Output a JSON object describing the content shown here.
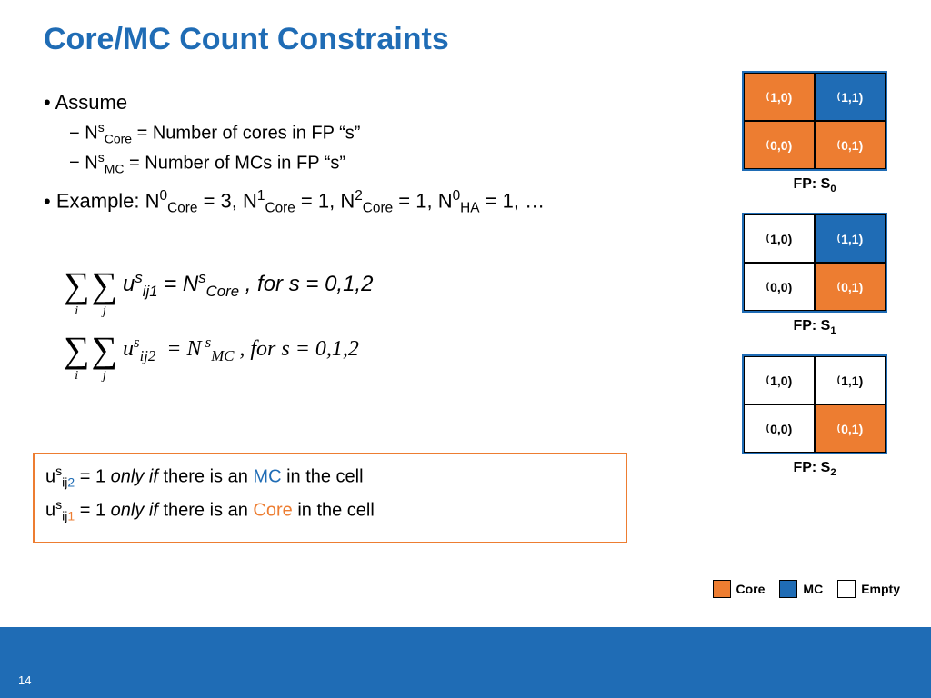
{
  "title": "Core/MC Count Constraints",
  "colors": {
    "core": "#ed7d31",
    "mc": "#1f6cb5",
    "empty": "#ffffff",
    "title": "#1f6cb5",
    "footer": "#1f6cb5"
  },
  "bullets": {
    "assume": "Assume",
    "def_core_pre": "N",
    "def_core_post": " = Number of cores in FP “s”",
    "def_mc_pre": "N",
    "def_mc_post": "   = Number of MCs in FP “s”",
    "example_pre": "Example: N",
    "example_mid1": " = 3, N",
    "example_mid2": " = 1, N",
    "example_mid3": " = 1, N",
    "example_end": " = 1, …"
  },
  "formula": {
    "eq1": " , for s = 0,1,2",
    "eq2": " ,  for s = 0,1,2"
  },
  "box": {
    "line1a": "u",
    "line1b": " = 1 ",
    "line1c": "only if ",
    "line1d": "there is an ",
    "line1e": "MC",
    "line1f": " in the cell",
    "line2a": "u",
    "line2b": " = 1 ",
    "line2c": "only if ",
    "line2d": "there is an ",
    "line2e": "Core",
    "line2f": " in the cell"
  },
  "grids": [
    {
      "label": "FP: S",
      "sub": "0",
      "cells": [
        {
          "pos": "1,0",
          "type": "core"
        },
        {
          "pos": "1,1",
          "type": "mc"
        },
        {
          "pos": "0,0",
          "type": "core"
        },
        {
          "pos": "0,1",
          "type": "core"
        }
      ]
    },
    {
      "label": "FP: S",
      "sub": "1",
      "cells": [
        {
          "pos": "1,0",
          "type": "empty"
        },
        {
          "pos": "1,1",
          "type": "mc"
        },
        {
          "pos": "0,0",
          "type": "empty"
        },
        {
          "pos": "0,1",
          "type": "core"
        }
      ]
    },
    {
      "label": "FP: S",
      "sub": "2",
      "cells": [
        {
          "pos": "1,0",
          "type": "empty"
        },
        {
          "pos": "1,1",
          "type": "empty"
        },
        {
          "pos": "0,0",
          "type": "empty"
        },
        {
          "pos": "0,1",
          "type": "core"
        }
      ]
    }
  ],
  "legend": {
    "core": "Core",
    "mc": "MC",
    "empty": "Empty"
  },
  "pagenum": "14"
}
